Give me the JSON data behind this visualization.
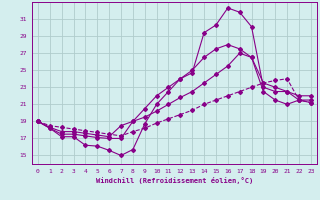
{
  "xlabel": "Windchill (Refroidissement éolien,°C)",
  "xlim": [
    -0.5,
    23.5
  ],
  "ylim": [
    14.0,
    33.0
  ],
  "yticks": [
    15,
    17,
    19,
    21,
    23,
    25,
    27,
    29,
    31
  ],
  "xticks": [
    0,
    1,
    2,
    3,
    4,
    5,
    6,
    7,
    8,
    9,
    10,
    11,
    12,
    13,
    14,
    15,
    16,
    17,
    18,
    19,
    20,
    21,
    22,
    23
  ],
  "bg_color": "#d4eeee",
  "grid_color": "#b0cccc",
  "line_color": "#880088",
  "line1_x": [
    0,
    1,
    2,
    3,
    4,
    5,
    6,
    7,
    8,
    9,
    10,
    11,
    12,
    13,
    14,
    15,
    16,
    17,
    18,
    19,
    20,
    21,
    22,
    23
  ],
  "line1_y": [
    19.0,
    18.2,
    17.2,
    17.2,
    16.2,
    16.1,
    15.6,
    15.0,
    15.7,
    18.7,
    21.0,
    22.5,
    24.0,
    24.7,
    29.4,
    30.3,
    32.3,
    31.8,
    30.1,
    23.0,
    22.5,
    22.5,
    21.5,
    21.2
  ],
  "line2_x": [
    0,
    1,
    2,
    3,
    4,
    5,
    6,
    7,
    8,
    9,
    10,
    11,
    12,
    13,
    14,
    15,
    16,
    17,
    18,
    19,
    20,
    21,
    22,
    23
  ],
  "line2_y": [
    19.0,
    18.2,
    17.5,
    17.5,
    17.3,
    17.1,
    17.0,
    17.0,
    19.0,
    20.5,
    22.0,
    23.0,
    24.0,
    25.0,
    26.5,
    27.5,
    28.0,
    27.5,
    26.5,
    23.5,
    23.0,
    22.5,
    22.0,
    22.0
  ],
  "line3_x": [
    0,
    1,
    2,
    3,
    4,
    5,
    6,
    7,
    8,
    9,
    10,
    11,
    12,
    13,
    14,
    15,
    16,
    17,
    18,
    19,
    20,
    21,
    22,
    23
  ],
  "line3_y": [
    19.0,
    18.3,
    17.8,
    17.8,
    17.6,
    17.4,
    17.2,
    18.5,
    19.0,
    19.5,
    20.2,
    21.0,
    21.8,
    22.5,
    23.5,
    24.5,
    25.5,
    27.0,
    26.5,
    22.5,
    21.5,
    21.0,
    21.5,
    21.5
  ],
  "line4_x": [
    0,
    1,
    2,
    3,
    4,
    5,
    6,
    7,
    8,
    9,
    10,
    11,
    12,
    13,
    14,
    15,
    16,
    17,
    18,
    19,
    20,
    21,
    22,
    23
  ],
  "line4_y": [
    19.0,
    18.5,
    18.3,
    18.1,
    17.9,
    17.7,
    17.5,
    17.3,
    17.8,
    18.2,
    18.8,
    19.3,
    19.8,
    20.3,
    21.0,
    21.5,
    22.0,
    22.5,
    23.0,
    23.5,
    23.8,
    24.0,
    21.5,
    21.2
  ]
}
